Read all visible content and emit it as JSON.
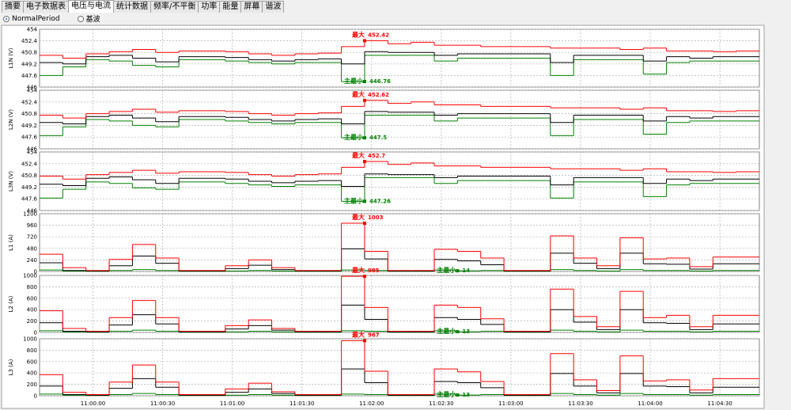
{
  "tabs": [
    "摘要",
    "电子数据表",
    "电压与电流",
    "统计数据",
    "频率/不平衡",
    "功率",
    "能量",
    "屏幕",
    "谐波"
  ],
  "radio_options": [
    "NormalPeriod",
    "基波"
  ],
  "chart_data": [
    {
      "type": "line",
      "step": true,
      "ylabel": "L1N (V)",
      "grid": true,
      "x": [
        -23,
        -13,
        -3,
        7,
        17,
        27,
        37,
        47,
        57,
        67,
        77,
        87,
        97,
        107,
        117,
        127,
        137,
        147,
        157,
        167,
        177,
        187,
        197,
        207,
        217,
        227,
        237,
        247,
        257,
        267,
        277
      ],
      "xlim": [
        -23,
        287
      ],
      "ylim": [
        446,
        454
      ],
      "yticks": [
        446,
        447.6,
        449.2,
        450.8,
        452.4,
        454
      ],
      "series": [
        {
          "color": "#ff0000",
          "values": [
            450.4,
            450.0,
            450.6,
            450.9,
            451.2,
            450.8,
            451.0,
            451.0,
            450.9,
            450.6,
            450.4,
            450.6,
            450.7,
            451.6,
            452.42,
            452.0,
            452.2,
            451.8,
            451.8,
            451.6,
            451.6,
            451.6,
            451.4,
            451.4,
            451.4,
            451.2,
            451.4,
            451.0,
            451.0,
            450.9,
            451.0
          ]
        },
        {
          "color": "#000000",
          "values": [
            449.4,
            449.2,
            450.2,
            450.4,
            450.0,
            449.5,
            450.2,
            450.2,
            450.1,
            449.8,
            449.6,
            449.8,
            449.9,
            449.2,
            450.9,
            450.8,
            450.8,
            450.4,
            450.6,
            450.6,
            450.6,
            450.6,
            449.4,
            450.4,
            450.4,
            450.4,
            449.6,
            450.2,
            450.0,
            450.2,
            450.2
          ]
        },
        {
          "color": "#008000",
          "values": [
            447.6,
            448.8,
            449.8,
            449.6,
            449.0,
            448.8,
            449.8,
            449.8,
            449.6,
            449.4,
            449.2,
            449.4,
            449.4,
            446.76,
            450.4,
            450.4,
            450.4,
            449.6,
            450.0,
            450.0,
            450.0,
            450.0,
            447.6,
            449.8,
            449.8,
            449.8,
            447.8,
            449.4,
            449.6,
            449.6,
            449.6
          ]
        }
      ],
      "annotations": [
        {
          "text": "最大",
          "x": 117,
          "value": 452.42,
          "color": "#ff0000"
        },
        {
          "text": "主最小",
          "x": 117,
          "value": 446.76,
          "color": "#008000"
        }
      ]
    },
    {
      "type": "line",
      "step": true,
      "ylabel": "L2N (V)",
      "grid": true,
      "x": [
        -23,
        -13,
        -3,
        7,
        17,
        27,
        37,
        47,
        57,
        67,
        77,
        87,
        97,
        107,
        117,
        127,
        137,
        147,
        157,
        167,
        177,
        187,
        197,
        207,
        217,
        227,
        237,
        247,
        257,
        267,
        277
      ],
      "xlim": [
        -23,
        287
      ],
      "ylim": [
        446,
        454
      ],
      "yticks": [
        446,
        447.6,
        449.2,
        450.8,
        452.4,
        454
      ],
      "series": [
        {
          "color": "#ff0000",
          "values": [
            450.6,
            450.2,
            450.8,
            451.1,
            451.4,
            451.0,
            451.2,
            451.2,
            451.1,
            450.8,
            450.6,
            450.8,
            450.9,
            451.8,
            452.62,
            452.2,
            452.4,
            452.0,
            452.0,
            451.8,
            451.8,
            451.8,
            451.6,
            451.6,
            451.6,
            451.4,
            451.6,
            451.2,
            451.2,
            451.1,
            451.2
          ]
        },
        {
          "color": "#000000",
          "values": [
            449.6,
            449.4,
            450.4,
            450.6,
            450.2,
            449.7,
            450.4,
            450.4,
            450.3,
            450.0,
            449.8,
            450.0,
            450.1,
            449.4,
            451.1,
            451.0,
            451.0,
            450.6,
            450.8,
            450.8,
            450.8,
            450.8,
            449.6,
            450.6,
            450.6,
            450.6,
            449.8,
            450.4,
            450.2,
            450.4,
            450.4
          ]
        },
        {
          "color": "#008000",
          "values": [
            447.8,
            449.0,
            450.0,
            449.8,
            449.2,
            449.0,
            450.0,
            450.0,
            449.8,
            449.6,
            449.4,
            449.6,
            449.6,
            447.5,
            450.6,
            450.6,
            450.6,
            449.8,
            450.2,
            450.2,
            450.2,
            450.2,
            447.8,
            450.0,
            450.0,
            450.0,
            448.0,
            449.6,
            449.8,
            449.8,
            449.8
          ]
        }
      ],
      "annotations": [
        {
          "text": "最大",
          "x": 117,
          "value": 452.62,
          "color": "#ff0000"
        },
        {
          "text": "主最小",
          "x": 117,
          "value": 447.5,
          "color": "#008000"
        }
      ]
    },
    {
      "type": "line",
      "step": true,
      "ylabel": "L3N (V)",
      "grid": true,
      "x": [
        -23,
        -13,
        -3,
        7,
        17,
        27,
        37,
        47,
        57,
        67,
        77,
        87,
        97,
        107,
        117,
        127,
        137,
        147,
        157,
        167,
        177,
        187,
        197,
        207,
        217,
        227,
        237,
        247,
        257,
        267,
        277
      ],
      "xlim": [
        -23,
        287
      ],
      "ylim": [
        446,
        454
      ],
      "yticks": [
        446,
        447.6,
        449.2,
        450.8,
        452.4,
        454
      ],
      "series": [
        {
          "color": "#ff0000",
          "values": [
            450.7,
            450.3,
            450.9,
            451.2,
            451.5,
            451.1,
            451.3,
            451.3,
            451.2,
            450.9,
            450.7,
            450.9,
            451.0,
            451.9,
            452.7,
            452.3,
            452.5,
            452.1,
            452.1,
            451.9,
            451.9,
            451.9,
            451.7,
            451.7,
            451.7,
            451.5,
            451.7,
            451.3,
            451.3,
            451.2,
            451.3
          ]
        },
        {
          "color": "#000000",
          "values": [
            449.6,
            449.4,
            450.4,
            450.6,
            450.2,
            449.7,
            450.4,
            450.4,
            450.3,
            450.0,
            449.8,
            450.0,
            450.1,
            449.3,
            451.0,
            450.9,
            450.9,
            450.5,
            450.7,
            450.7,
            450.7,
            450.7,
            449.5,
            450.5,
            450.5,
            450.5,
            449.7,
            450.3,
            450.1,
            450.3,
            450.3
          ]
        },
        {
          "color": "#008000",
          "values": [
            447.7,
            448.9,
            449.9,
            449.7,
            449.1,
            448.9,
            449.9,
            449.9,
            449.7,
            449.5,
            449.3,
            449.5,
            449.5,
            447.26,
            450.5,
            450.5,
            450.5,
            449.7,
            450.1,
            450.1,
            450.1,
            450.1,
            447.7,
            449.9,
            449.9,
            449.9,
            447.9,
            449.5,
            449.7,
            449.7,
            449.7
          ]
        }
      ],
      "annotations": [
        {
          "text": "最大",
          "x": 117,
          "value": 452.7,
          "color": "#ff0000"
        },
        {
          "text": "主最小",
          "x": 117,
          "value": 447.26,
          "color": "#008000"
        }
      ]
    },
    {
      "type": "line",
      "step": true,
      "ylabel": "L1 (A)",
      "grid": true,
      "x": [
        -23,
        -13,
        -3,
        7,
        17,
        27,
        37,
        47,
        57,
        67,
        77,
        87,
        97,
        107,
        117,
        127,
        137,
        147,
        157,
        167,
        177,
        187,
        197,
        207,
        217,
        227,
        237,
        247,
        257,
        267,
        277
      ],
      "xlim": [
        -23,
        287
      ],
      "ylim": [
        0,
        1200
      ],
      "yticks": [
        0,
        240,
        480,
        720,
        960,
        1200
      ],
      "series": [
        {
          "color": "#ff0000",
          "values": [
            360,
            80,
            20,
            250,
            560,
            280,
            20,
            20,
            120,
            240,
            80,
            20,
            20,
            1003,
            420,
            20,
            20,
            460,
            420,
            280,
            20,
            20,
            740,
            280,
            120,
            700,
            260,
            280,
            100,
            300,
            300
          ]
        },
        {
          "color": "#000000",
          "values": [
            180,
            20,
            10,
            120,
            320,
            170,
            10,
            10,
            60,
            130,
            40,
            10,
            10,
            470,
            260,
            10,
            10,
            250,
            220,
            140,
            10,
            10,
            380,
            170,
            60,
            380,
            160,
            150,
            50,
            160,
            160
          ]
        },
        {
          "color": "#008000",
          "values": [
            30,
            10,
            5,
            20,
            40,
            20,
            5,
            5,
            10,
            20,
            10,
            5,
            5,
            30,
            20,
            5,
            5,
            30,
            14,
            20,
            5,
            5,
            40,
            20,
            10,
            40,
            20,
            20,
            10,
            20,
            20
          ]
        }
      ],
      "annotations": [
        {
          "text": "最大",
          "x": 117,
          "value": 1003,
          "color": "#ff0000"
        },
        {
          "text": "主最小",
          "x": 157,
          "value": 14,
          "color": "#008000"
        }
      ]
    },
    {
      "type": "line",
      "step": true,
      "ylabel": "L2 (A)",
      "grid": true,
      "x": [
        -23,
        -13,
        -3,
        7,
        17,
        27,
        37,
        47,
        57,
        67,
        77,
        87,
        97,
        107,
        117,
        127,
        137,
        147,
        157,
        167,
        177,
        187,
        197,
        207,
        217,
        227,
        237,
        247,
        257,
        267,
        277
      ],
      "xlim": [
        -23,
        287
      ],
      "ylim": [
        0,
        1000
      ],
      "yticks": [
        0,
        200,
        400,
        600,
        800,
        1000
      ],
      "series": [
        {
          "color": "#ff0000",
          "values": [
            380,
            70,
            20,
            260,
            560,
            260,
            20,
            20,
            120,
            220,
            70,
            20,
            20,
            985,
            440,
            20,
            20,
            480,
            440,
            240,
            20,
            20,
            760,
            280,
            100,
            720,
            260,
            300,
            100,
            300,
            300
          ]
        },
        {
          "color": "#000000",
          "values": [
            170,
            20,
            10,
            130,
            310,
            150,
            10,
            10,
            60,
            120,
            40,
            10,
            10,
            480,
            230,
            10,
            10,
            260,
            230,
            140,
            10,
            10,
            400,
            180,
            50,
            400,
            170,
            160,
            50,
            150,
            150
          ]
        },
        {
          "color": "#008000",
          "values": [
            30,
            10,
            5,
            20,
            40,
            20,
            5,
            5,
            10,
            20,
            10,
            5,
            5,
            30,
            20,
            5,
            5,
            30,
            13,
            20,
            5,
            5,
            40,
            20,
            10,
            40,
            20,
            20,
            10,
            20,
            20
          ]
        }
      ],
      "annotations": [
        {
          "text": "最大",
          "x": 117,
          "value": 985,
          "color": "#ff0000"
        },
        {
          "text": "主最小",
          "x": 157,
          "value": 13,
          "color": "#008000"
        }
      ]
    },
    {
      "type": "line",
      "step": true,
      "ylabel": "L3 (A)",
      "grid": true,
      "x": [
        -23,
        -13,
        -3,
        7,
        17,
        27,
        37,
        47,
        57,
        67,
        77,
        87,
        97,
        107,
        117,
        127,
        137,
        147,
        157,
        167,
        177,
        187,
        197,
        207,
        217,
        227,
        237,
        247,
        257,
        267,
        277
      ],
      "xlim": [
        -23,
        287
      ],
      "ylim": [
        0,
        1000
      ],
      "yticks": [
        0,
        200,
        400,
        600,
        800,
        1000
      ],
      "xticks": [
        {
          "value": 0,
          "label": "11:00:00"
        },
        {
          "value": 30,
          "label": "11:00:30"
        },
        {
          "value": 60,
          "label": "11:01:00"
        },
        {
          "value": 90,
          "label": "11:01:30"
        },
        {
          "value": 120,
          "label": "11:02:00"
        },
        {
          "value": 150,
          "label": "11:02:30"
        },
        {
          "value": 180,
          "label": "11:03:00"
        },
        {
          "value": 210,
          "label": "11:03:30"
        },
        {
          "value": 240,
          "label": "11:04:00"
        },
        {
          "value": 270,
          "label": "11:04:30"
        }
      ],
      "series": [
        {
          "color": "#ff0000",
          "values": [
            370,
            60,
            20,
            240,
            540,
            240,
            20,
            20,
            120,
            220,
            70,
            20,
            20,
            967,
            430,
            20,
            20,
            470,
            420,
            250,
            20,
            20,
            740,
            280,
            90,
            700,
            260,
            280,
            100,
            300,
            300
          ]
        },
        {
          "color": "#000000",
          "values": [
            170,
            20,
            10,
            130,
            300,
            150,
            10,
            10,
            60,
            120,
            40,
            10,
            10,
            470,
            230,
            10,
            10,
            250,
            230,
            140,
            10,
            10,
            390,
            170,
            50,
            390,
            170,
            160,
            50,
            150,
            150
          ]
        },
        {
          "color": "#008000",
          "values": [
            30,
            10,
            5,
            20,
            40,
            20,
            5,
            5,
            10,
            20,
            10,
            5,
            5,
            30,
            20,
            5,
            5,
            30,
            13,
            20,
            5,
            5,
            40,
            20,
            10,
            40,
            20,
            20,
            10,
            20,
            20
          ]
        }
      ],
      "annotations": [
        {
          "text": "最大",
          "x": 117,
          "value": 967,
          "color": "#ff0000"
        },
        {
          "text": "主最小",
          "x": 157,
          "value": 13,
          "color": "#008000"
        }
      ]
    }
  ]
}
